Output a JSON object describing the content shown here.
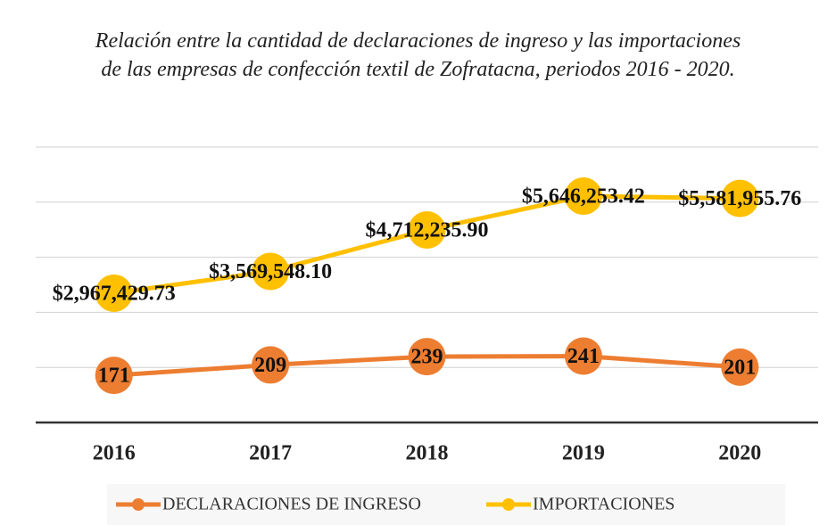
{
  "chart_data": {
    "type": "line",
    "title": "Relación entre la cantidad de declaraciones de ingreso y las importaciones de las empresas de confección textil de Zofratacna, periodos 2016 - 2020.",
    "categories": [
      "2016",
      "2017",
      "2018",
      "2019",
      "2020"
    ],
    "series": [
      {
        "name": "DECLARACIONES DE INGRESO",
        "color": "#ED7D31",
        "values": [
          171,
          209,
          239,
          241,
          201
        ]
      },
      {
        "name": "IMPORTACIONES",
        "color": "#FFC000",
        "axis": "y2",
        "values": [
          2967429.73,
          3569548.1,
          4712235.9,
          5646253.42,
          5581955.76
        ],
        "value_labels": [
          "$2,967,429.73",
          "$3,569,548.10",
          "$4,712,235.90",
          "$5,646,253.42",
          "$5,581,955.76"
        ]
      }
    ],
    "ylim": [
      0,
      1000
    ],
    "y2lim": [
      -600000,
      7000000
    ],
    "grid": true,
    "legend": "bottom"
  }
}
